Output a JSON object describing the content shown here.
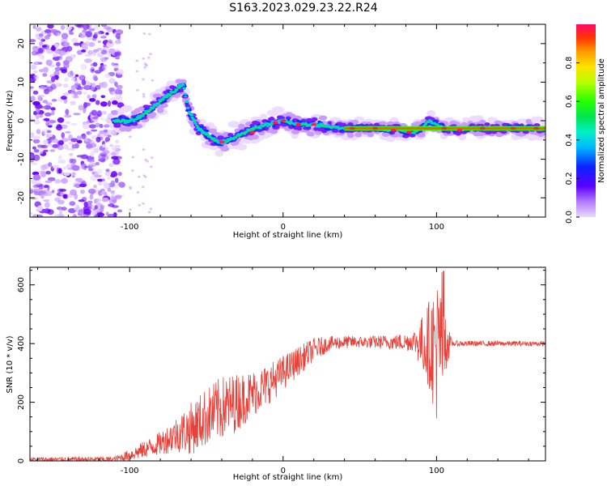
{
  "title": "S163.2023.029.23.22.R24",
  "chart_data": [
    {
      "type": "heatmap",
      "xlabel": "Height of straight line (km)",
      "ylabel": "Frequency (Hz)",
      "xlim": [
        -165,
        171
      ],
      "ylim": [
        -25,
        25
      ],
      "x_ticks": [
        -100,
        0,
        100
      ],
      "x_tick_labels": [
        "-100",
        "0",
        "100"
      ],
      "y_ticks": [
        -20,
        -10,
        0,
        10,
        20
      ],
      "y_tick_labels": [
        "-20",
        "-10",
        "0",
        "10",
        "20"
      ],
      "colorbar": {
        "label": "Normalized spectral amplitude",
        "range": [
          0,
          1
        ],
        "ticks": [
          0.0,
          0.2,
          0.4,
          0.6,
          0.8
        ],
        "tick_labels": [
          "0.0",
          "0.2",
          "0.4",
          "0.6",
          "0.8"
        ],
        "colormap": "gist_ncar_like"
      },
      "ridge": {
        "x": [
          -110,
          -100,
          -95,
          -90,
          -85,
          -80,
          -75,
          -70,
          -65,
          -62,
          -58,
          -55,
          -50,
          -45,
          -40,
          -35,
          -30,
          -25,
          -20,
          -15,
          -10,
          -5,
          0,
          5,
          10,
          20,
          30,
          40,
          50,
          60,
          70,
          75,
          80,
          85,
          90,
          95,
          100,
          105,
          110,
          115,
          120,
          130,
          140,
          150,
          160,
          171
        ],
        "y": [
          0,
          0,
          0.5,
          2,
          3.5,
          5,
          6.5,
          8,
          9.5,
          3,
          0,
          -2,
          -3.5,
          -5,
          -5.5,
          -5,
          -4,
          -3,
          -2,
          -1.5,
          -1,
          -0.5,
          0,
          -0.5,
          -1,
          -1,
          -1.5,
          -2,
          -2,
          -2,
          -2.5,
          -2,
          -3,
          -3,
          -2,
          0,
          -1,
          -2,
          -2,
          -2.5,
          -2,
          -2,
          -2,
          -2,
          -2,
          -2
        ]
      }
    },
    {
      "type": "line",
      "xlabel": "Height of straight line (km)",
      "ylabel": "SNR (10 * v/v)",
      "xlim": [
        -165,
        171
      ],
      "ylim": [
        0,
        660
      ],
      "x_ticks": [
        -100,
        0,
        100
      ],
      "x_tick_labels": [
        "-100",
        "0",
        "100"
      ],
      "y_ticks": [
        0,
        200,
        400,
        600
      ],
      "y_tick_labels": [
        "0",
        "200",
        "400",
        "600"
      ],
      "color": "#e8413a",
      "envelope": {
        "x": [
          -165,
          -110,
          -100,
          -90,
          -80,
          -70,
          -60,
          -50,
          -40,
          -30,
          -20,
          -10,
          0,
          10,
          20,
          30,
          40,
          50,
          60,
          70,
          80,
          85,
          90,
          95,
          100,
          105,
          110,
          120,
          130,
          140,
          150,
          160,
          171
        ],
        "y": [
          5,
          5,
          20,
          40,
          60,
          90,
          110,
          150,
          180,
          200,
          230,
          260,
          300,
          340,
          380,
          400,
          405,
          405,
          405,
          405,
          405,
          410,
          400,
          400,
          380,
          400,
          400,
          400,
          400,
          400,
          400,
          400,
          400
        ]
      },
      "noise": {
        "x": [
          -165,
          -110,
          -100,
          -90,
          -80,
          -70,
          -60,
          -50,
          -40,
          -30,
          -20,
          -10,
          0,
          10,
          20,
          30,
          50,
          70,
          85,
          90,
          95,
          100,
          105,
          110,
          171
        ],
        "amp": [
          8,
          10,
          20,
          30,
          40,
          60,
          90,
          100,
          110,
          100,
          80,
          70,
          60,
          50,
          40,
          25,
          20,
          25,
          35,
          90,
          150,
          250,
          120,
          10,
          8
        ]
      }
    }
  ]
}
